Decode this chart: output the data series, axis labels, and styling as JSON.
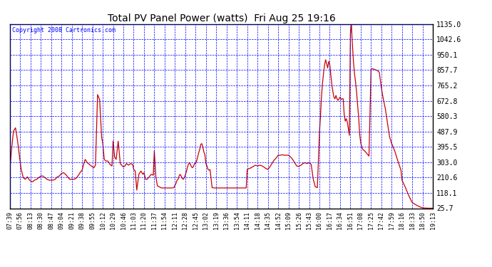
{
  "title": "Total PV Panel Power (watts)  Fri Aug 25 19:16",
  "copyright": "Copyright 2008 Cartronics.com",
  "background_color": "#ffffff",
  "plot_bg_color": "#ffffff",
  "grid_color": "#0000ff",
  "line_color": "#cc0000",
  "y_ticks": [
    25.7,
    118.1,
    210.6,
    303.0,
    395.5,
    487.9,
    580.3,
    672.8,
    765.2,
    857.7,
    950.1,
    1042.6,
    1135.0
  ],
  "x_labels": [
    "07:39",
    "07:56",
    "08:13",
    "08:30",
    "08:47",
    "09:04",
    "09:21",
    "09:38",
    "09:55",
    "10:12",
    "10:29",
    "10:46",
    "11:03",
    "11:20",
    "11:37",
    "11:54",
    "12:11",
    "12:28",
    "12:45",
    "13:02",
    "13:19",
    "13:36",
    "13:54",
    "14:11",
    "14:18",
    "14:35",
    "14:52",
    "15:09",
    "15:26",
    "15:43",
    "16:00",
    "16:17",
    "16:34",
    "16:51",
    "17:08",
    "17:25",
    "17:42",
    "17:59",
    "18:16",
    "18:33",
    "18:50",
    "19:13"
  ],
  "ylim_min": 25.7,
  "ylim_max": 1135.0,
  "detailed_x": [
    0.0,
    0.15,
    0.35,
    0.55,
    0.75,
    0.95,
    1.1,
    1.3,
    1.5,
    1.7,
    1.85,
    2.0,
    2.2,
    2.4,
    2.6,
    2.8,
    3.0,
    3.2,
    3.4,
    3.6,
    3.8,
    4.0,
    4.2,
    4.4,
    4.6,
    4.8,
    5.0,
    5.2,
    5.4,
    5.6,
    5.8,
    6.0,
    6.2,
    6.4,
    6.6,
    6.8,
    7.0,
    7.15,
    7.3,
    7.5,
    7.7,
    7.9,
    8.0,
    8.15,
    8.3,
    8.5,
    8.7,
    8.9,
    9.0,
    9.15,
    9.3,
    9.5,
    9.7,
    9.9,
    10.0,
    10.15,
    10.3,
    10.5,
    10.7,
    10.9,
    11.0,
    11.15,
    11.3,
    11.5,
    11.7,
    11.9,
    12.0,
    12.15,
    12.3,
    12.5,
    12.7,
    12.9,
    13.0,
    13.15,
    13.3,
    13.5,
    13.7,
    13.9,
    14.0,
    14.15,
    14.3,
    14.5,
    14.6,
    14.7,
    14.85,
    15.0,
    15.15,
    15.3,
    15.45,
    15.6,
    15.75,
    15.9,
    16.0,
    16.1,
    16.2,
    16.3,
    16.4,
    16.5,
    16.6,
    16.7,
    16.8,
    16.9,
    17.0,
    17.1,
    17.2,
    17.3,
    17.4,
    17.5,
    17.6,
    17.7,
    17.8,
    17.9,
    18.0,
    18.1,
    18.2,
    18.3,
    18.4,
    18.5,
    18.6,
    18.7,
    18.8,
    18.9,
    19.0,
    19.1,
    19.2,
    19.3,
    19.4,
    19.6,
    19.8,
    20.0,
    20.2,
    20.4,
    20.6,
    20.8,
    21.0,
    21.3,
    21.6,
    21.9,
    22.0,
    22.3,
    22.6,
    22.9,
    23.0,
    23.2,
    23.4,
    23.6,
    23.8,
    24.0,
    24.2,
    24.4,
    24.6,
    24.8,
    25.0,
    25.2,
    25.4,
    25.6,
    25.8,
    26.0,
    26.2,
    26.4,
    26.6,
    26.8,
    27.0,
    27.2,
    27.4,
    27.6,
    27.8,
    28.0,
    28.2,
    28.4,
    28.6,
    28.8,
    29.0,
    29.2,
    29.4,
    29.6,
    29.8,
    30.0,
    30.1,
    30.2,
    30.3,
    30.4,
    30.5,
    30.6,
    30.7,
    30.8,
    30.9,
    31.0,
    31.1,
    31.2,
    31.3,
    31.4,
    31.5,
    31.6,
    31.7,
    31.8,
    31.9,
    32.0,
    32.1,
    32.2,
    32.3,
    32.4,
    32.5,
    32.6,
    32.7,
    32.8,
    32.9,
    33.0,
    33.1,
    33.15,
    33.2,
    33.3,
    33.4,
    33.5,
    33.6,
    33.7,
    33.8,
    33.9,
    34.0,
    34.1,
    34.2,
    34.4,
    34.6,
    34.8,
    35.0,
    35.2,
    35.4,
    35.6,
    35.8,
    36.0,
    36.2,
    36.4,
    36.6,
    36.8,
    37.0,
    37.3,
    37.6,
    37.9,
    38.0,
    38.3,
    38.6,
    38.9,
    39.0,
    39.3,
    39.6,
    39.9,
    40.0,
    40.5,
    41.0
  ],
  "detailed_y": [
    260,
    370,
    490,
    510,
    430,
    330,
    260,
    210,
    200,
    215,
    200,
    190,
    185,
    195,
    200,
    210,
    220,
    220,
    210,
    200,
    195,
    195,
    195,
    200,
    215,
    220,
    235,
    240,
    230,
    215,
    200,
    200,
    200,
    205,
    220,
    240,
    255,
    290,
    320,
    300,
    290,
    280,
    275,
    270,
    285,
    710,
    680,
    450,
    420,
    320,
    310,
    310,
    290,
    280,
    430,
    335,
    320,
    430,
    295,
    280,
    275,
    280,
    295,
    285,
    295,
    290,
    260,
    250,
    135,
    230,
    250,
    230,
    240,
    200,
    200,
    215,
    230,
    225,
    370,
    215,
    160,
    155,
    150,
    148,
    148,
    148,
    148,
    148,
    148,
    148,
    148,
    150,
    165,
    175,
    195,
    200,
    220,
    230,
    220,
    205,
    200,
    210,
    225,
    245,
    270,
    290,
    300,
    290,
    275,
    270,
    278,
    295,
    295,
    310,
    335,
    360,
    380,
    410,
    415,
    395,
    365,
    348,
    295,
    280,
    260,
    255,
    258,
    150,
    148,
    148,
    148,
    148,
    148,
    148,
    148,
    148,
    148,
    148,
    148,
    148,
    148,
    148,
    260,
    265,
    270,
    278,
    285,
    280,
    285,
    282,
    275,
    265,
    260,
    275,
    295,
    315,
    328,
    345,
    345,
    348,
    345,
    345,
    345,
    335,
    320,
    300,
    280,
    278,
    285,
    295,
    300,
    295,
    300,
    290,
    200,
    155,
    150,
    480,
    580,
    700,
    780,
    840,
    890,
    920,
    895,
    870,
    910,
    890,
    830,
    770,
    730,
    695,
    685,
    705,
    685,
    675,
    685,
    695,
    680,
    685,
    685,
    590,
    550,
    565,
    545,
    505,
    465,
    1075,
    1135,
    1060,
    1010,
    905,
    835,
    785,
    725,
    645,
    575,
    470,
    420,
    395,
    380,
    370,
    355,
    340,
    865,
    865,
    860,
    855,
    845,
    750,
    680,
    620,
    535,
    455,
    415,
    370,
    310,
    255,
    195,
    155,
    110,
    70,
    60,
    48,
    38,
    30,
    28,
    26,
    26
  ]
}
